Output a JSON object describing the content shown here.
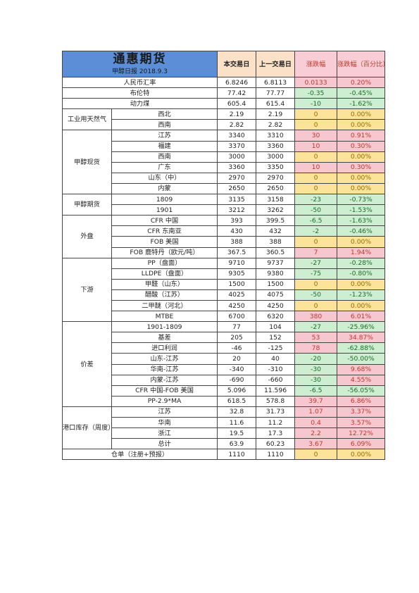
{
  "header": {
    "title": "通惠期货",
    "subtitle": "甲醇日报 2018.9.3",
    "col_today": "本交易日",
    "col_prev": "上一交易日",
    "col_change": "涨跌幅",
    "col_pct": "涨跌幅（百分比）"
  },
  "colors": {
    "header_bg": "#5b8ed6",
    "up": "#f6c7cf",
    "down": "#cdeed1",
    "flat": "#fbe49a"
  },
  "rows": [
    {
      "group": "",
      "label": "人民币汇率",
      "today": "6.8246",
      "prev": "6.8113",
      "change": "0.0133",
      "pct": "0.20%",
      "dir": "up"
    },
    {
      "group": "",
      "label": "布伦特",
      "today": "77.42",
      "prev": "77.77",
      "change": "-0.35",
      "pct": "-0.45%",
      "dir": "down"
    },
    {
      "group": "",
      "label": "动力煤",
      "today": "605.4",
      "prev": "615.4",
      "change": "-10",
      "pct": "-1.62%",
      "dir": "down"
    },
    {
      "group": "工业用天然气",
      "label": "西北",
      "today": "2.19",
      "prev": "2.19",
      "change": "0",
      "pct": "0.00%",
      "dir": "flat"
    },
    {
      "group": "工业用天然气",
      "label": "西南",
      "today": "2.82",
      "prev": "2.82",
      "change": "0",
      "pct": "0.00%",
      "dir": "flat"
    },
    {
      "group": "甲醇现货",
      "label": "江苏",
      "today": "3340",
      "prev": "3310",
      "change": "30",
      "pct": "0.91%",
      "dir": "up"
    },
    {
      "group": "甲醇现货",
      "label": "福建",
      "today": "3370",
      "prev": "3360",
      "change": "10",
      "pct": "0.30%",
      "dir": "up"
    },
    {
      "group": "甲醇现货",
      "label": "西南",
      "today": "3000",
      "prev": "3000",
      "change": "0",
      "pct": "0.00%",
      "dir": "flat"
    },
    {
      "group": "甲醇现货",
      "label": "广东",
      "today": "3360",
      "prev": "3350",
      "change": "10",
      "pct": "0.30%",
      "dir": "up"
    },
    {
      "group": "甲醇现货",
      "label": "山东（中）",
      "today": "2970",
      "prev": "2970",
      "change": "0",
      "pct": "0.00%",
      "dir": "flat"
    },
    {
      "group": "甲醇现货",
      "label": "内蒙",
      "today": "2650",
      "prev": "2650",
      "change": "0",
      "pct": "0.00%",
      "dir": "flat"
    },
    {
      "group": "甲醇期货",
      "label": "1809",
      "today": "3135",
      "prev": "3158",
      "change": "-23",
      "pct": "-0.73%",
      "dir": "down"
    },
    {
      "group": "甲醇期货",
      "label": "1901",
      "today": "3212",
      "prev": "3262",
      "change": "-50",
      "pct": "-1.53%",
      "dir": "down"
    },
    {
      "group": "外盘",
      "label": "CFR 中国",
      "today": "393",
      "prev": "399.5",
      "change": "-6.5",
      "pct": "-1.63%",
      "dir": "down"
    },
    {
      "group": "外盘",
      "label": "CFR 东南亚",
      "today": "430",
      "prev": "432",
      "change": "-2",
      "pct": "-0.46%",
      "dir": "down"
    },
    {
      "group": "外盘",
      "label": "FOB 美国",
      "today": "388",
      "prev": "388",
      "change": "0",
      "pct": "0.00%",
      "dir": "flat"
    },
    {
      "group": "外盘",
      "label": "FOB 鹿特丹（欧元/吨）",
      "today": "367.5",
      "prev": "360.5",
      "change": "7",
      "pct": "1.94%",
      "dir": "up"
    },
    {
      "group": "下游",
      "label": "PP（盘面）",
      "today": "9710",
      "prev": "9737",
      "change": "-27",
      "pct": "-0.28%",
      "dir": "down"
    },
    {
      "group": "下游",
      "label": "LLDPE（盘面）",
      "today": "9305",
      "prev": "9380",
      "change": "-75",
      "pct": "-0.80%",
      "dir": "down"
    },
    {
      "group": "下游",
      "label": "甲醛（山东）",
      "today": "1500",
      "prev": "1500",
      "change": "0",
      "pct": "0.00%",
      "dir": "flat"
    },
    {
      "group": "下游",
      "label": "醋酸（江苏）",
      "today": "4025",
      "prev": "4075",
      "change": "-50",
      "pct": "-1.23%",
      "dir": "down"
    },
    {
      "group": "下游",
      "label": "二甲醚（河北）",
      "today": "4250",
      "prev": "4250",
      "change": "0",
      "pct": "0.00%",
      "dir": "flat"
    },
    {
      "group": "下游",
      "label": "MTBE",
      "today": "6700",
      "prev": "6320",
      "change": "380",
      "pct": "6.01%",
      "dir": "up"
    },
    {
      "group": "价差",
      "label": "1901-1809",
      "today": "77",
      "prev": "104",
      "change": "-27",
      "pct": "-25.96%",
      "dir": "down"
    },
    {
      "group": "价差",
      "label": "基差",
      "today": "205",
      "prev": "152",
      "change": "53",
      "pct": "34.87%",
      "dir": "up"
    },
    {
      "group": "价差",
      "label": "进口利润",
      "today": "-46",
      "prev": "-125",
      "change": "78",
      "pct": "-62.88%",
      "dir": "up",
      "pct_dir": "down"
    },
    {
      "group": "价差",
      "label": "山东-江苏",
      "today": "20",
      "prev": "40",
      "change": "-20",
      "pct": "-50.00%",
      "dir": "down"
    },
    {
      "group": "价差",
      "label": "华南-江苏",
      "today": "-340",
      "prev": "-310",
      "change": "-30",
      "pct": "9.68%",
      "dir": "down",
      "pct_dir": "up"
    },
    {
      "group": "价差",
      "label": "内蒙-江苏",
      "today": "-690",
      "prev": "-660",
      "change": "-30",
      "pct": "4.55%",
      "dir": "down",
      "pct_dir": "up"
    },
    {
      "group": "价差",
      "label": "CFR 中国-FOB 美国",
      "today": "5.096",
      "prev": "11.596",
      "change": "-6.5",
      "pct": "-56.05%",
      "dir": "down"
    },
    {
      "group": "价差",
      "label": "PP-2.9*MA",
      "today": "618.5",
      "prev": "578.8",
      "change": "39.7",
      "pct": "6.86%",
      "dir": "up"
    },
    {
      "group": "港口库存（周度）",
      "label": "江苏",
      "today": "32.8",
      "prev": "31.73",
      "change": "1.07",
      "pct": "3.37%",
      "dir": "up"
    },
    {
      "group": "港口库存（周度）",
      "label": "华南",
      "today": "11.6",
      "prev": "11.2",
      "change": "0.4",
      "pct": "3.57%",
      "dir": "up"
    },
    {
      "group": "港口库存（周度）",
      "label": "浙江",
      "today": "19.5",
      "prev": "17.3",
      "change": "2.2",
      "pct": "12.72%",
      "dir": "up"
    },
    {
      "group": "港口库存（周度）",
      "label": "总计",
      "today": "63.9",
      "prev": "60.23",
      "change": "3.67",
      "pct": "6.09%",
      "dir": "up"
    },
    {
      "group": "",
      "label": "仓单（注册+预报）",
      "today": "1110",
      "prev": "1110",
      "change": "0",
      "pct": "0.00%",
      "dir": "flat"
    }
  ]
}
